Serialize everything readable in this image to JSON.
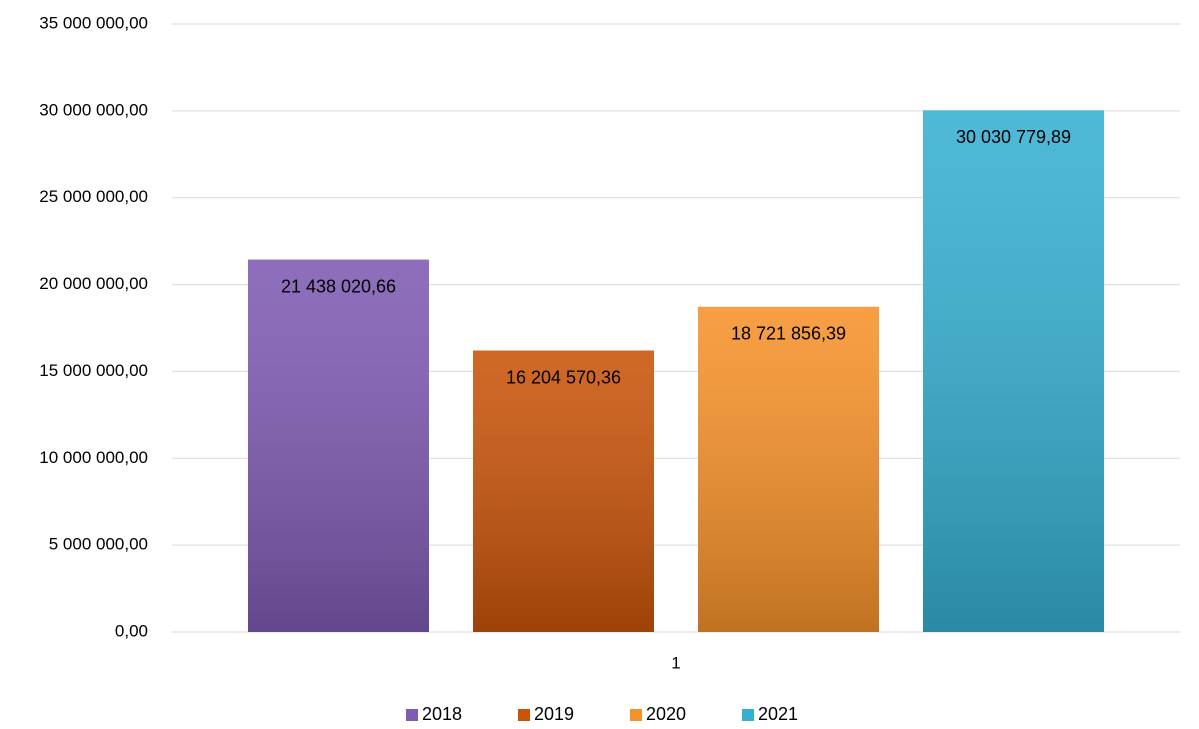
{
  "chart_data": {
    "type": "bar",
    "categories": [
      "1"
    ],
    "series": [
      {
        "name": "2018",
        "color": "#7f5bb3",
        "values": [
          21438020.66
        ],
        "value_labels": [
          "21 438 020,66"
        ]
      },
      {
        "name": "2019",
        "color": "#c9540a",
        "values": [
          16204570.36
        ],
        "value_labels": [
          "16 204 570,36"
        ]
      },
      {
        "name": "2020",
        "color": "#f7922a",
        "values": [
          18721856.39
        ],
        "value_labels": [
          "18 721 856,39"
        ]
      },
      {
        "name": "2021",
        "color": "#36b0d2",
        "values": [
          30030779.89
        ],
        "value_labels": [
          "30 030 779,89"
        ]
      }
    ],
    "ylim": [
      0,
      35000000
    ],
    "yticks": [
      {
        "value": 0,
        "label": "0,00"
      },
      {
        "value": 5000000,
        "label": "5 000 000,00"
      },
      {
        "value": 10000000,
        "label": "10 000 000,00"
      },
      {
        "value": 15000000,
        "label": "15 000 000,00"
      },
      {
        "value": 20000000,
        "label": "20 000 000,00"
      },
      {
        "value": 25000000,
        "label": "25 000 000,00"
      },
      {
        "value": 30000000,
        "label": "30 000 000,00"
      },
      {
        "value": 35000000,
        "label": "35 000 000,00"
      }
    ],
    "grid": true,
    "legend": "bottom"
  }
}
